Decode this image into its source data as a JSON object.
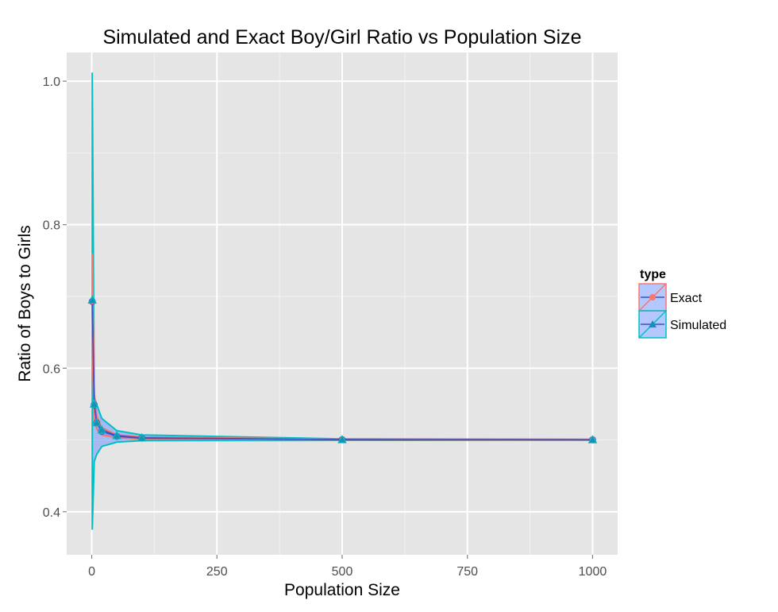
{
  "chart_data": {
    "type": "line",
    "title": "Simulated and Exact Boy/Girl Ratio vs Population Size",
    "xlabel": "Population Size",
    "ylabel": "Ratio of Boys to Girls",
    "xlim": [
      -50,
      1050
    ],
    "ylim": [
      0.34,
      1.04
    ],
    "x_ticks": [
      0,
      250,
      500,
      750,
      1000
    ],
    "x_tick_labels": [
      "0",
      "250",
      "500",
      "750",
      "1000"
    ],
    "y_ticks": [
      0.4,
      0.6,
      0.8,
      1.0
    ],
    "y_tick_labels": [
      "0.4",
      "0.6",
      "0.8",
      "1.0"
    ],
    "grid": true,
    "legend": {
      "title": "type",
      "position": "right"
    },
    "series": [
      {
        "name": "Exact",
        "color": "#f8766d",
        "marker": "circle",
        "x": [
          1,
          5,
          10,
          20,
          50,
          100,
          500,
          1000
        ],
        "y": [
          0.693,
          0.549,
          0.524,
          0.512,
          0.505,
          0.5025,
          0.5005,
          0.50025
        ],
        "lower": [
          0.62,
          0.53,
          0.515,
          0.507,
          0.503,
          0.501,
          0.5,
          0.5
        ],
        "upper": [
          0.76,
          0.565,
          0.533,
          0.517,
          0.507,
          0.504,
          0.501,
          0.5005
        ]
      },
      {
        "name": "Simulated",
        "color": "#00bfc4",
        "marker": "triangle",
        "x": [
          1,
          5,
          10,
          20,
          50,
          100,
          500,
          1000
        ],
        "y": [
          0.695,
          0.55,
          0.524,
          0.514,
          0.506,
          0.503,
          0.5005,
          0.5003
        ],
        "lower": [
          0.375,
          0.47,
          0.48,
          0.491,
          0.497,
          0.499,
          0.4995,
          0.4997
        ],
        "upper": [
          1.012,
          0.56,
          0.549,
          0.53,
          0.513,
          0.507,
          0.5015,
          0.5008
        ]
      }
    ]
  }
}
